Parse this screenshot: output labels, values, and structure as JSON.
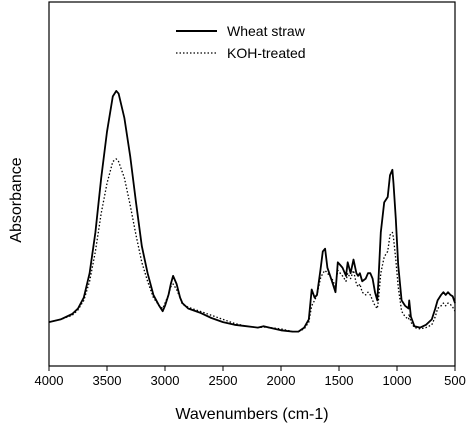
{
  "chart_data": {
    "type": "line",
    "title": "",
    "xlabel": "Wavenumbers (cm-1)",
    "ylabel": "Absorbance",
    "xlim": [
      4000,
      500
    ],
    "x_reversed": true,
    "ylim": [
      0,
      1
    ],
    "y_ticks_shown": false,
    "grid": false,
    "legend_position": "top-center",
    "x_ticks": [
      4000,
      3500,
      3000,
      2500,
      2000,
      1500,
      1000,
      500
    ],
    "x_tick_labels": [
      "4000",
      "3500",
      "3000",
      "2500",
      "2000",
      "1500",
      "1000",
      "500"
    ],
    "series": [
      {
        "name": "Wheat straw",
        "style": "solid",
        "color": "#000000",
        "points": [
          [
            4000,
            0.04
          ],
          [
            3900,
            0.05
          ],
          [
            3800,
            0.07
          ],
          [
            3750,
            0.09
          ],
          [
            3700,
            0.13
          ],
          [
            3650,
            0.22
          ],
          [
            3600,
            0.37
          ],
          [
            3550,
            0.57
          ],
          [
            3500,
            0.74
          ],
          [
            3450,
            0.87
          ],
          [
            3420,
            0.89
          ],
          [
            3400,
            0.88
          ],
          [
            3350,
            0.79
          ],
          [
            3300,
            0.65
          ],
          [
            3250,
            0.48
          ],
          [
            3200,
            0.32
          ],
          [
            3150,
            0.22
          ],
          [
            3100,
            0.14
          ],
          [
            3050,
            0.1
          ],
          [
            3020,
            0.08
          ],
          [
            3000,
            0.1
          ],
          [
            2970,
            0.14
          ],
          [
            2950,
            0.18
          ],
          [
            2930,
            0.21
          ],
          [
            2900,
            0.18
          ],
          [
            2870,
            0.13
          ],
          [
            2850,
            0.11
          ],
          [
            2800,
            0.09
          ],
          [
            2700,
            0.075
          ],
          [
            2600,
            0.055
          ],
          [
            2500,
            0.04
          ],
          [
            2400,
            0.03
          ],
          [
            2300,
            0.025
          ],
          [
            2200,
            0.02
          ],
          [
            2150,
            0.025
          ],
          [
            2100,
            0.02
          ],
          [
            2000,
            0.01
          ],
          [
            1900,
            0.005
          ],
          [
            1850,
            0.005
          ],
          [
            1800,
            0.02
          ],
          [
            1760,
            0.05
          ],
          [
            1735,
            0.16
          ],
          [
            1710,
            0.13
          ],
          [
            1690,
            0.14
          ],
          [
            1660,
            0.23
          ],
          [
            1640,
            0.3
          ],
          [
            1620,
            0.31
          ],
          [
            1600,
            0.24
          ],
          [
            1560,
            0.19
          ],
          [
            1530,
            0.15
          ],
          [
            1510,
            0.26
          ],
          [
            1490,
            0.25
          ],
          [
            1470,
            0.24
          ],
          [
            1440,
            0.21
          ],
          [
            1425,
            0.26
          ],
          [
            1400,
            0.22
          ],
          [
            1375,
            0.27
          ],
          [
            1350,
            0.22
          ],
          [
            1335,
            0.21
          ],
          [
            1320,
            0.22
          ],
          [
            1300,
            0.19
          ],
          [
            1270,
            0.2
          ],
          [
            1250,
            0.22
          ],
          [
            1230,
            0.22
          ],
          [
            1210,
            0.2
          ],
          [
            1190,
            0.15
          ],
          [
            1170,
            0.12
          ],
          [
            1160,
            0.19
          ],
          [
            1140,
            0.37
          ],
          [
            1110,
            0.48
          ],
          [
            1080,
            0.5
          ],
          [
            1060,
            0.58
          ],
          [
            1040,
            0.6
          ],
          [
            1030,
            0.55
          ],
          [
            1010,
            0.42
          ],
          [
            990,
            0.25
          ],
          [
            960,
            0.12
          ],
          [
            930,
            0.1
          ],
          [
            900,
            0.09
          ],
          [
            895,
            0.12
          ],
          [
            880,
            0.06
          ],
          [
            850,
            0.025
          ],
          [
            800,
            0.02
          ],
          [
            750,
            0.03
          ],
          [
            700,
            0.05
          ],
          [
            670,
            0.09
          ],
          [
            650,
            0.12
          ],
          [
            620,
            0.14
          ],
          [
            600,
            0.15
          ],
          [
            580,
            0.14
          ],
          [
            560,
            0.15
          ],
          [
            540,
            0.14
          ],
          [
            520,
            0.135
          ],
          [
            500,
            0.11
          ]
        ]
      },
      {
        "name": "KOH-treated",
        "style": "dotted",
        "color": "#000000",
        "points": [
          [
            4000,
            0.04
          ],
          [
            3900,
            0.05
          ],
          [
            3800,
            0.065
          ],
          [
            3750,
            0.085
          ],
          [
            3700,
            0.12
          ],
          [
            3650,
            0.19
          ],
          [
            3600,
            0.3
          ],
          [
            3550,
            0.44
          ],
          [
            3500,
            0.55
          ],
          [
            3450,
            0.63
          ],
          [
            3420,
            0.64
          ],
          [
            3400,
            0.63
          ],
          [
            3350,
            0.57
          ],
          [
            3300,
            0.47
          ],
          [
            3250,
            0.36
          ],
          [
            3200,
            0.26
          ],
          [
            3150,
            0.19
          ],
          [
            3100,
            0.13
          ],
          [
            3050,
            0.1
          ],
          [
            3020,
            0.09
          ],
          [
            3000,
            0.11
          ],
          [
            2970,
            0.14
          ],
          [
            2950,
            0.17
          ],
          [
            2930,
            0.18
          ],
          [
            2900,
            0.16
          ],
          [
            2870,
            0.13
          ],
          [
            2850,
            0.105
          ],
          [
            2800,
            0.095
          ],
          [
            2700,
            0.08
          ],
          [
            2600,
            0.065
          ],
          [
            2500,
            0.05
          ],
          [
            2400,
            0.035
          ],
          [
            2300,
            0.025
          ],
          [
            2200,
            0.02
          ],
          [
            2150,
            0.022
          ],
          [
            2100,
            0.02
          ],
          [
            2000,
            0.015
          ],
          [
            1900,
            0.005
          ],
          [
            1850,
            0.005
          ],
          [
            1800,
            0.015
          ],
          [
            1760,
            0.04
          ],
          [
            1735,
            0.1
          ],
          [
            1710,
            0.12
          ],
          [
            1690,
            0.14
          ],
          [
            1660,
            0.2
          ],
          [
            1640,
            0.22
          ],
          [
            1620,
            0.23
          ],
          [
            1600,
            0.22
          ],
          [
            1560,
            0.2
          ],
          [
            1530,
            0.17
          ],
          [
            1510,
            0.23
          ],
          [
            1490,
            0.22
          ],
          [
            1470,
            0.21
          ],
          [
            1440,
            0.19
          ],
          [
            1425,
            0.22
          ],
          [
            1400,
            0.2
          ],
          [
            1375,
            0.23
          ],
          [
            1350,
            0.18
          ],
          [
            1335,
            0.17
          ],
          [
            1320,
            0.18
          ],
          [
            1300,
            0.15
          ],
          [
            1270,
            0.14
          ],
          [
            1250,
            0.15
          ],
          [
            1230,
            0.14
          ],
          [
            1210,
            0.12
          ],
          [
            1190,
            0.1
          ],
          [
            1170,
            0.09
          ],
          [
            1160,
            0.12
          ],
          [
            1140,
            0.22
          ],
          [
            1110,
            0.28
          ],
          [
            1080,
            0.3
          ],
          [
            1060,
            0.36
          ],
          [
            1040,
            0.37
          ],
          [
            1030,
            0.35
          ],
          [
            1010,
            0.27
          ],
          [
            990,
            0.17
          ],
          [
            960,
            0.08
          ],
          [
            930,
            0.06
          ],
          [
            900,
            0.05
          ],
          [
            895,
            0.07
          ],
          [
            880,
            0.04
          ],
          [
            850,
            0.02
          ],
          [
            800,
            0.015
          ],
          [
            750,
            0.02
          ],
          [
            700,
            0.03
          ],
          [
            670,
            0.06
          ],
          [
            650,
            0.09
          ],
          [
            620,
            0.1
          ],
          [
            600,
            0.11
          ],
          [
            580,
            0.1
          ],
          [
            560,
            0.11
          ],
          [
            540,
            0.105
          ],
          [
            520,
            0.095
          ],
          [
            500,
            0.08
          ]
        ]
      }
    ]
  }
}
